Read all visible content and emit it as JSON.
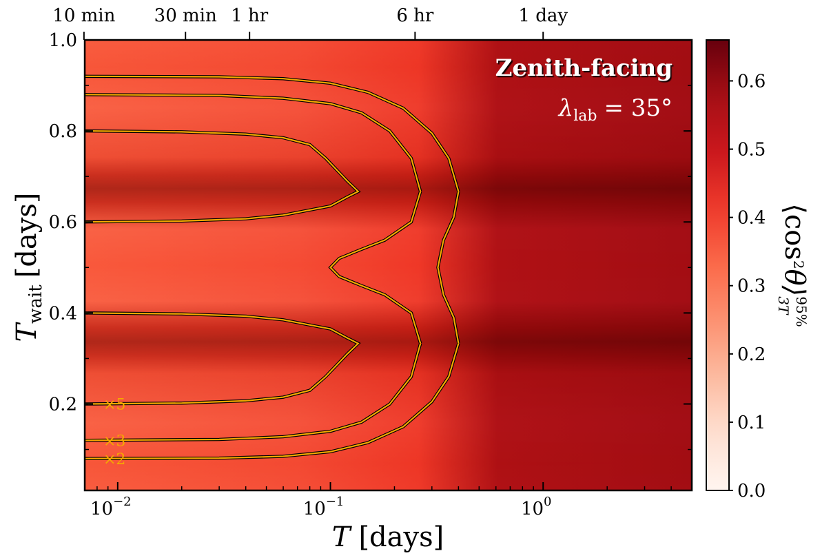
{
  "chart_data": {
    "type": "heatmap",
    "colormap": "Reds",
    "xscale": "log",
    "xlim": [
      0.007,
      5.0
    ],
    "ylim": [
      0.01,
      1.0
    ],
    "xlabel_var": "T",
    "xlabel_unit": "[days]",
    "ylabel_var": "T",
    "ylabel_sub": "wait",
    "ylabel_unit": "[days]",
    "x_ticks": [
      {
        "value": 0.01,
        "base": "10",
        "exp": "−2"
      },
      {
        "value": 0.1,
        "base": "10",
        "exp": "−1"
      },
      {
        "value": 1.0,
        "base": "10",
        "exp": "0"
      }
    ],
    "y_ticks": [
      {
        "value": 0.2,
        "label": "0.2"
      },
      {
        "value": 0.4,
        "label": "0.4"
      },
      {
        "value": 0.6,
        "label": "0.6"
      },
      {
        "value": 0.8,
        "label": "0.8"
      },
      {
        "value": 1.0,
        "label": "1.0"
      }
    ],
    "top_axis_ticks": [
      {
        "value": 0.00694,
        "label": "10 min"
      },
      {
        "value": 0.02083,
        "label": "30 min"
      },
      {
        "value": 0.04167,
        "label": "1 hr"
      },
      {
        "value": 0.25,
        "label": "6 hr"
      },
      {
        "value": 1.0,
        "label": "1 day"
      }
    ],
    "colorbar": {
      "range": [
        0.0,
        0.66
      ],
      "ticks": [
        0.0,
        0.1,
        0.2,
        0.3,
        0.4,
        0.5,
        0.6
      ],
      "tick_labels": [
        "0.0",
        "0.1",
        "0.2",
        "0.3",
        "0.4",
        "0.5",
        "0.6"
      ],
      "label_main": "⟨cos",
      "label_sup": "2",
      "label_theta": "θ⟩",
      "label_sub": "3T",
      "label_sup2": "95%"
    },
    "annotation": {
      "title": "Zenith-facing",
      "lambda_sym": "λ",
      "lambda_sub": "lab",
      "lambda_eq": "= 35°"
    },
    "contours": [
      {
        "label": "×2",
        "color": "#f5a800",
        "lower": [
          [
            0.007,
            0.08
          ],
          [
            0.03,
            0.081
          ],
          [
            0.06,
            0.085
          ],
          [
            0.1,
            0.095
          ],
          [
            0.15,
            0.115
          ],
          [
            0.22,
            0.15
          ],
          [
            0.3,
            0.205
          ],
          [
            0.36,
            0.26
          ],
          [
            0.4,
            0.333
          ]
        ],
        "middle": [
          [
            0.4,
            0.333
          ],
          [
            0.38,
            0.39
          ],
          [
            0.34,
            0.44
          ],
          [
            0.32,
            0.5
          ],
          [
            0.34,
            0.56
          ],
          [
            0.38,
            0.61
          ],
          [
            0.4,
            0.667
          ]
        ],
        "upper": [
          [
            0.4,
            0.667
          ],
          [
            0.36,
            0.74
          ],
          [
            0.3,
            0.795
          ],
          [
            0.22,
            0.85
          ],
          [
            0.15,
            0.885
          ],
          [
            0.1,
            0.905
          ],
          [
            0.06,
            0.915
          ],
          [
            0.03,
            0.919
          ],
          [
            0.007,
            0.92
          ]
        ]
      },
      {
        "label": "×3",
        "color": "#f5a800",
        "lower": [
          [
            0.007,
            0.12
          ],
          [
            0.03,
            0.122
          ],
          [
            0.06,
            0.128
          ],
          [
            0.1,
            0.14
          ],
          [
            0.14,
            0.16
          ],
          [
            0.19,
            0.2
          ],
          [
            0.24,
            0.26
          ],
          [
            0.265,
            0.333
          ]
        ],
        "middle": [
          [
            0.265,
            0.333
          ],
          [
            0.24,
            0.4
          ],
          [
            0.18,
            0.44
          ],
          [
            0.14,
            0.46
          ],
          [
            0.11,
            0.48
          ],
          [
            0.1,
            0.5
          ],
          [
            0.11,
            0.52
          ],
          [
            0.14,
            0.54
          ],
          [
            0.18,
            0.56
          ],
          [
            0.24,
            0.6
          ],
          [
            0.265,
            0.667
          ]
        ],
        "upper": [
          [
            0.265,
            0.667
          ],
          [
            0.24,
            0.74
          ],
          [
            0.19,
            0.8
          ],
          [
            0.14,
            0.84
          ],
          [
            0.1,
            0.86
          ],
          [
            0.06,
            0.872
          ],
          [
            0.03,
            0.878
          ],
          [
            0.007,
            0.88
          ]
        ]
      },
      {
        "label": "×5",
        "color": "#f5a800",
        "lower": [
          [
            0.007,
            0.2
          ],
          [
            0.02,
            0.202
          ],
          [
            0.04,
            0.207
          ],
          [
            0.06,
            0.215
          ],
          [
            0.08,
            0.23
          ],
          [
            0.095,
            0.26
          ],
          [
            0.12,
            0.31
          ],
          [
            0.135,
            0.333
          ],
          [
            0.12,
            0.345
          ],
          [
            0.1,
            0.365
          ],
          [
            0.06,
            0.385
          ],
          [
            0.04,
            0.393
          ],
          [
            0.02,
            0.398
          ],
          [
            0.007,
            0.4
          ]
        ],
        "upper": [
          [
            0.007,
            0.6
          ],
          [
            0.02,
            0.602
          ],
          [
            0.04,
            0.607
          ],
          [
            0.06,
            0.615
          ],
          [
            0.1,
            0.635
          ],
          [
            0.12,
            0.655
          ],
          [
            0.135,
            0.667
          ],
          [
            0.12,
            0.69
          ],
          [
            0.095,
            0.74
          ],
          [
            0.08,
            0.77
          ],
          [
            0.06,
            0.785
          ],
          [
            0.04,
            0.793
          ],
          [
            0.02,
            0.798
          ],
          [
            0.007,
            0.8
          ]
        ]
      }
    ]
  }
}
